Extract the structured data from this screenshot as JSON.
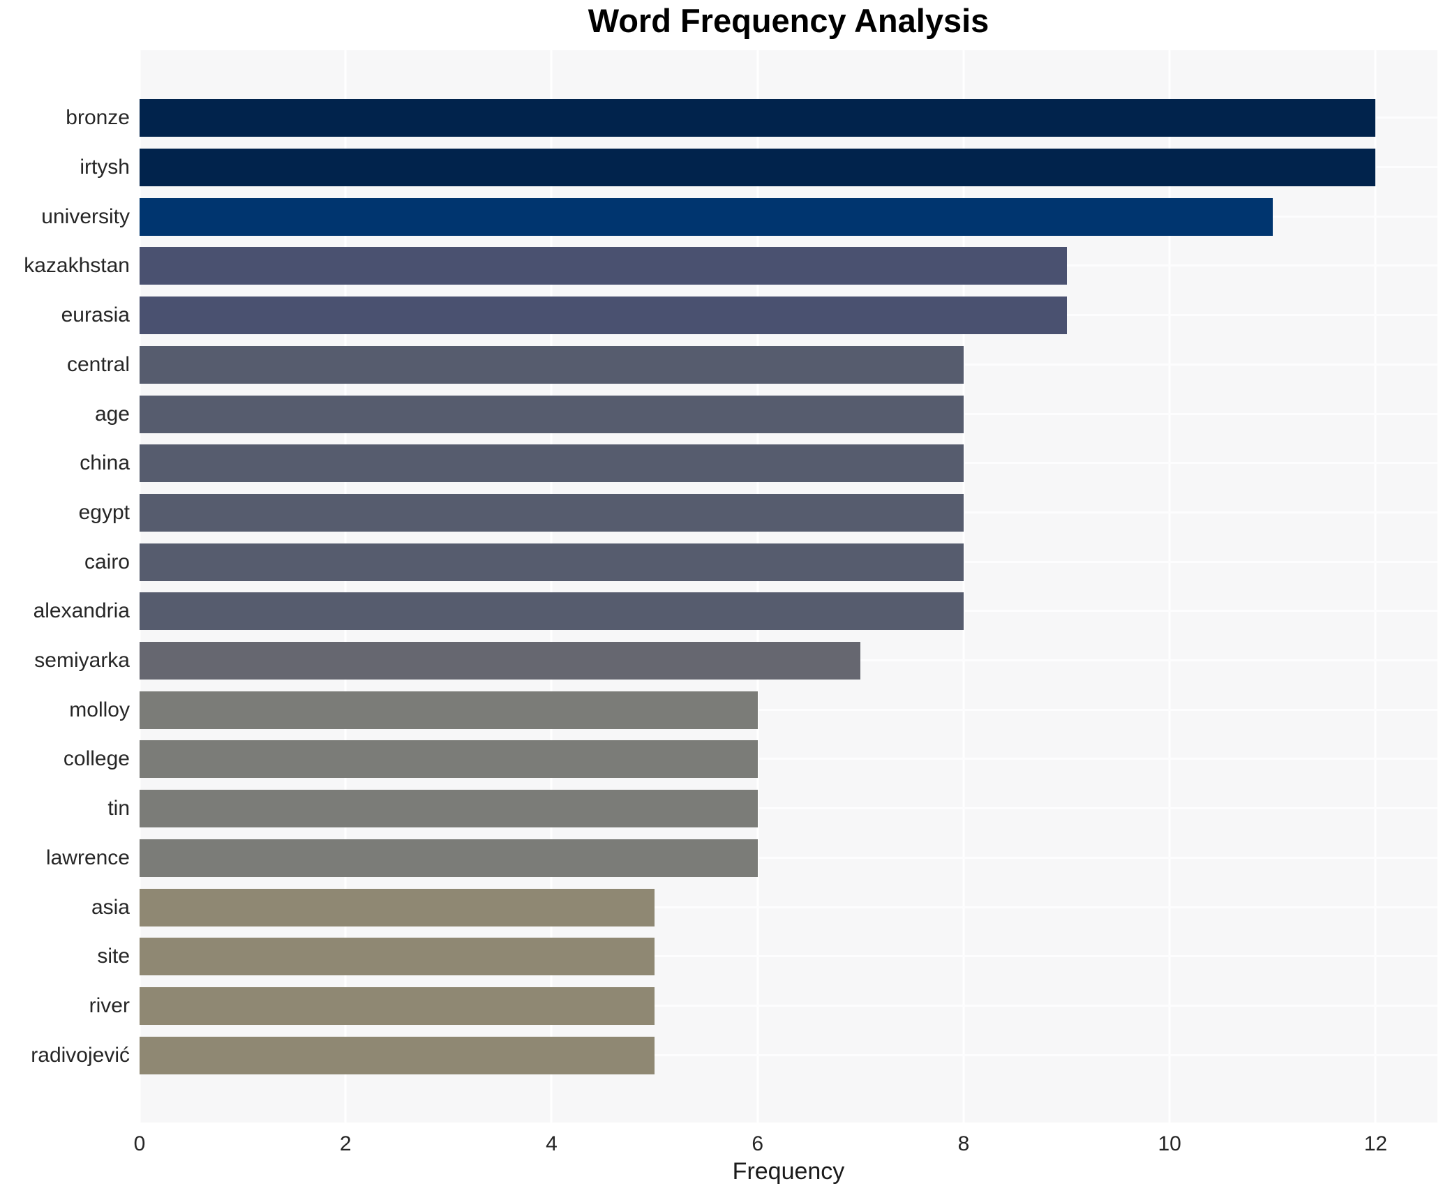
{
  "title": "Word Frequency Analysis",
  "chart_data": {
    "type": "bar",
    "orientation": "horizontal",
    "title": "Word Frequency Analysis",
    "xlabel": "Frequency",
    "ylabel": "",
    "xlim": [
      0,
      12.6
    ],
    "xticks": [
      0,
      2,
      4,
      6,
      8,
      10,
      12
    ],
    "grid": true,
    "legend": false,
    "categories": [
      "bronze",
      "irtysh",
      "university",
      "kazakhstan",
      "eurasia",
      "central",
      "age",
      "china",
      "egypt",
      "cairo",
      "alexandria",
      "semiyarka",
      "molloy",
      "college",
      "tin",
      "lawrence",
      "asia",
      "site",
      "river",
      "radivojević"
    ],
    "values": [
      12,
      12,
      11,
      9,
      9,
      8,
      8,
      8,
      8,
      8,
      8,
      7,
      6,
      6,
      6,
      6,
      5,
      5,
      5,
      5
    ],
    "bar_colors": [
      "#01234c",
      "#01234c",
      "#00356f",
      "#4a5170",
      "#4a5170",
      "#565c6e",
      "#565c6e",
      "#565c6e",
      "#565c6e",
      "#565c6e",
      "#565c6e",
      "#666770",
      "#7b7c78",
      "#7b7c78",
      "#7b7c78",
      "#7b7c78",
      "#8f8873",
      "#8f8873",
      "#8f8873",
      "#8f8873"
    ],
    "colors": {
      "plot_background": "#f7f7f8",
      "gridline": "#ffffff",
      "tick_text": "#262626",
      "title_text": "#000000"
    }
  }
}
